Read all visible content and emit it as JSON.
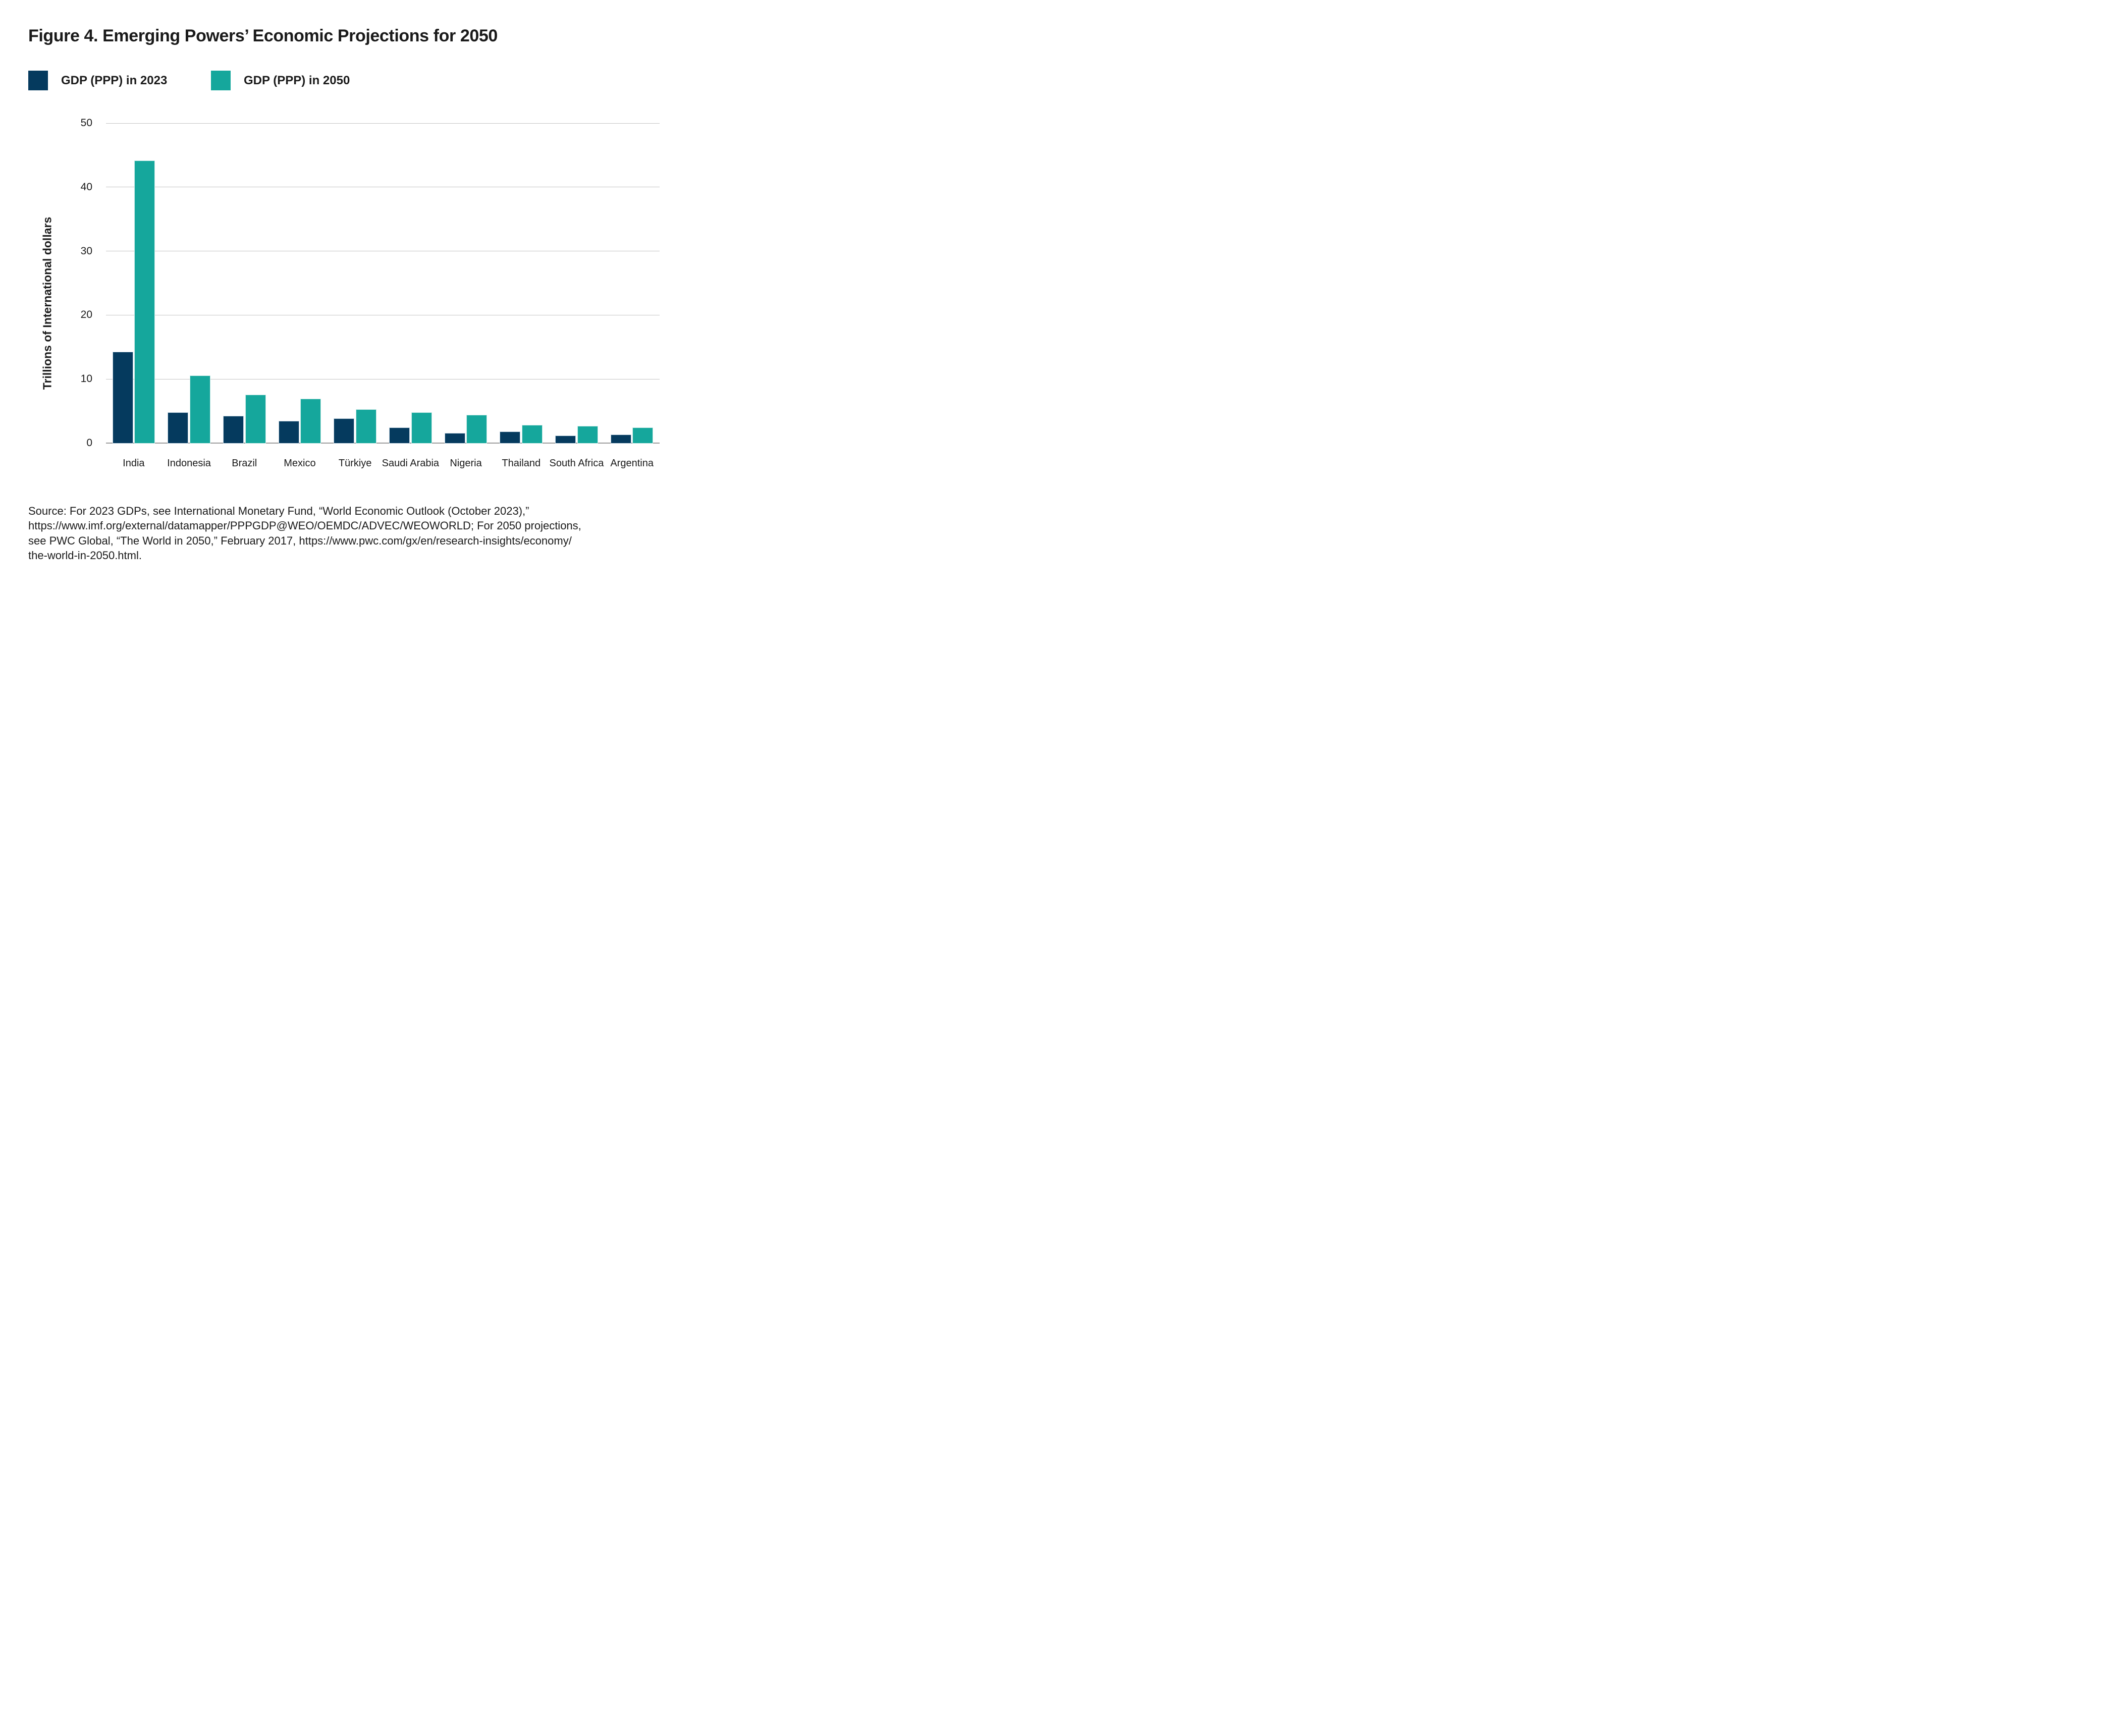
{
  "chart_data": {
    "type": "bar",
    "title": "Figure 4. Emerging Powers’ Economic Projections for 2050",
    "ylabel": "Trillions of International dollars",
    "ylim": [
      0,
      50
    ],
    "yticks": [
      0,
      10,
      20,
      30,
      40,
      50
    ],
    "grid": "horizontal",
    "legend_position": "top-left",
    "categories": [
      "India",
      "Indonesia",
      "Brazil",
      "Mexico",
      "Türkiye",
      "Saudi Arabia",
      "Nigeria",
      "Thailand",
      "South Africa",
      "Argentina"
    ],
    "series": [
      {
        "name": "GDP (PPP) in 2023",
        "color": "#053a5e",
        "edge_color": "#c7d8e4",
        "values": [
          14.2,
          4.7,
          4.2,
          3.4,
          3.8,
          2.4,
          1.5,
          1.7,
          1.1,
          1.3
        ]
      },
      {
        "name": "GDP (PPP) in 2050",
        "color": "#15a79c",
        "edge_color": "#cdebe8",
        "values": [
          44.1,
          10.5,
          7.5,
          6.9,
          5.2,
          4.7,
          4.3,
          2.8,
          2.6,
          2.4
        ]
      }
    ]
  },
  "colors": {
    "gridline": "#c4c4c4",
    "axis_line": "#9c9c9c",
    "text": "#1a1a1a"
  },
  "source": {
    "lines": [
      "Source: For 2023 GDPs, see International Monetary Fund, “World Economic Outlook (October 2023),”",
      "https://www.imf.org/external/datamapper/PPPGDP@WEO/OEMDC/ADVEC/WEOWORLD; For 2050 projections,",
      "see PWC Global, “The World in 2050,” February 2017, https://www.pwc.com/gx/en/research-insights/economy/",
      "the-world-in-2050.html."
    ]
  }
}
